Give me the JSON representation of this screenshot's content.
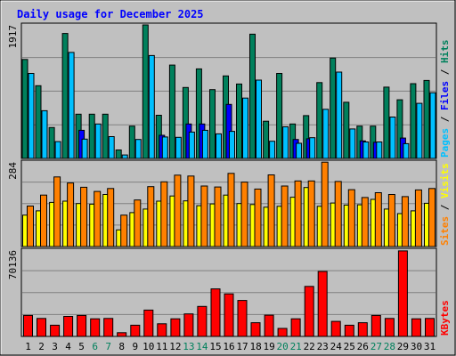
{
  "chart_data": {
    "type": "bar",
    "title": "Daily usage for December 2025",
    "days": [
      "1",
      "2",
      "3",
      "4",
      "5",
      "6",
      "7",
      "8",
      "9",
      "10",
      "11",
      "12",
      "13",
      "14",
      "15",
      "16",
      "17",
      "18",
      "19",
      "20",
      "21",
      "22",
      "23",
      "24",
      "25",
      "26",
      "27",
      "28",
      "29",
      "30",
      "31"
    ],
    "weekend_days": [
      6,
      7,
      13,
      14,
      20,
      21,
      27,
      28
    ],
    "colors": {
      "title": "#0000ff",
      "hits": "#00805c",
      "files": "#0000ff",
      "pages": "#00c0ff",
      "visits": "#ffff00",
      "sites": "#ff8000",
      "kbytes": "#ff0000",
      "weekend_label": "#00805c",
      "weekday_label": "#000000",
      "plot_bg": "#c0c0c0"
    },
    "panels": [
      {
        "id": "hits",
        "scale_max_label": "1917",
        "scale_max": 1917,
        "legend": [
          {
            "text": "Hits",
            "color": "#00805c"
          },
          {
            "text": "Files",
            "color": "#0000ff"
          },
          {
            "text": "Pages",
            "color": "#00c0ff"
          }
        ],
        "series": [
          {
            "name": "Hits",
            "values": [
              1410,
              1035,
              440,
              1780,
              630,
              630,
              630,
              120,
              460,
              1910,
              615,
              1330,
              1010,
              1275,
              980,
              1175,
              1060,
              1770,
              530,
              1210,
              490,
              610,
              1080,
              1430,
              800,
              460,
              460,
              1015,
              835,
              1065,
              1110
            ]
          },
          {
            "name": "Files",
            "values": [
              0,
              0,
              0,
              0,
              400,
              0,
              0,
              0,
              0,
              0,
              330,
              0,
              490,
              490,
              0,
              770,
              0,
              0,
              0,
              0,
              270,
              280,
              0,
              0,
              0,
              250,
              230,
              0,
              290,
              0,
              0
            ]
          },
          {
            "name": "Pages",
            "values": [
              1210,
              680,
              240,
              1510,
              275,
              490,
              310,
              50,
              270,
              1465,
              305,
              300,
              375,
              400,
              350,
              385,
              860,
              1115,
              245,
              450,
              215,
              295,
              700,
              1230,
              420,
              235,
              235,
              590,
              210,
              785,
              935
            ]
          }
        ]
      },
      {
        "id": "visits",
        "scale_max_label": "284",
        "scale_max": 284,
        "legend": [
          {
            "text": "Visits",
            "color": "#ffff00"
          },
          {
            "text": "Sites",
            "color": "#ff8000"
          }
        ],
        "series": [
          {
            "name": "Visits",
            "values": [
              104,
              118,
              146,
              150,
              142,
              140,
              172,
              55,
              112,
              124,
              150,
              167,
              151,
              135,
              141,
              170,
              142,
              139,
              130,
              133,
              163,
              195,
              133,
              144,
              137,
              138,
              156,
              124,
              109,
              118,
              143
            ]
          },
          {
            "name": "Sites",
            "values": [
              134,
              170,
              230,
              210,
              196,
              182,
              192,
              104,
              154,
              198,
              214,
              236,
              233,
              200,
              197,
              242,
              213,
              190,
              237,
              200,
              217,
              217,
              279,
              215,
              188,
              162,
              178,
              172,
              165,
              187,
              192
            ]
          }
        ]
      },
      {
        "id": "kbytes",
        "scale_max_label": "70136",
        "scale_max": 70136,
        "legend": [
          {
            "text": "KBytes",
            "color": "#ff0000"
          }
        ],
        "series": [
          {
            "name": "KBytes",
            "values": [
              16800,
              14400,
              9000,
              16000,
              16800,
              14100,
              14400,
              3000,
              9000,
              21100,
              10100,
              14100,
              18000,
              24000,
              38000,
              34000,
              28800,
              11000,
              17000,
              6400,
              14100,
              40000,
              52000,
              12000,
              9000,
              11000,
              16800,
              14400,
              68400,
              14100,
              14400
            ]
          }
        ]
      }
    ]
  }
}
